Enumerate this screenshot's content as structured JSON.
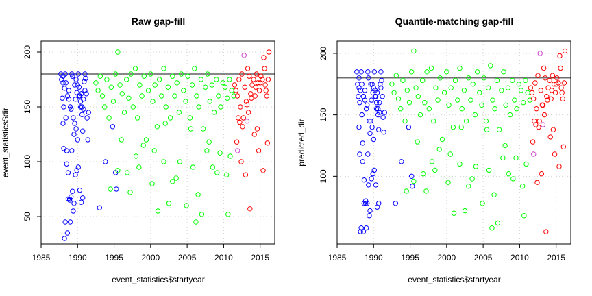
{
  "colors": {
    "period_1": "#0000ff",
    "period_2": "#00ff00",
    "period_3": "#ff0000",
    "highlight": "#cc44cc",
    "threshold_line": "#404040",
    "grid": "#d3d3d3"
  },
  "chart_data": [
    {
      "type": "scatter",
      "title": "Raw gap-fill",
      "xlabel": "event_statistics$startyear",
      "ylabel": "event_statistics$dir",
      "xlim": [
        1985,
        2017
      ],
      "ylim": [
        25,
        210
      ],
      "xticks": [
        "1985",
        "1990",
        "1995",
        "2000",
        "2005",
        "2010",
        "2015"
      ],
      "yticks": [
        "50",
        "100",
        "150",
        "200"
      ],
      "xtick_values": [
        1985,
        1990,
        1995,
        2000,
        2005,
        2010,
        2015
      ],
      "ytick_values": [
        50,
        100,
        150,
        200
      ],
      "grid": true,
      "hline": 180,
      "series": [
        {
          "color_key": "period_1",
          "x": [
            1987.7,
            1987.8,
            1987.9,
            1988.0,
            1988.0,
            1988.1,
            1988.2,
            1988.3,
            1988.4,
            1988.5,
            1988.6,
            1988.7,
            1988.8,
            1988.9,
            1989.0,
            1989.1,
            1989.2,
            1989.3,
            1989.4,
            1989.5,
            1989.6,
            1989.7,
            1989.8,
            1989.9,
            1990.0,
            1990.1,
            1990.2,
            1990.3,
            1990.4,
            1990.5,
            1990.6,
            1990.7,
            1990.8,
            1990.9,
            1991.0,
            1991.1,
            1991.2,
            1991.3,
            1991.4,
            1991.5,
            1988.1,
            1988.3,
            1988.5,
            1988.7,
            1988.9,
            1989.1,
            1989.3,
            1989.5,
            1989.7,
            1989.9,
            1990.1,
            1990.3,
            1990.5,
            1990.7,
            1988.2,
            1988.6,
            1989.0,
            1989.4,
            1989.8,
            1990.2,
            1990.6,
            1991.0,
            1988.0,
            1988.4,
            1988.8,
            1989.2,
            1989.6,
            1990.0,
            1990.4,
            1990.8,
            1993.0,
            1993.8,
            1994.8,
            1995.3,
            1995.2
          ],
          "y": [
            180,
            175,
            158,
            172,
            135,
            150,
            167,
            180,
            140,
            110,
            160,
            90,
            157,
            66,
            150,
            148,
            180,
            178,
            140,
            125,
            170,
            157,
            175,
            163,
            170,
            180,
            168,
            160,
            150,
            162,
            143,
            128,
            157,
            173,
            180,
            176,
            162,
            140,
            120,
            145,
            112,
            45,
            98,
            66,
            65,
            68,
            73,
            62,
            88,
            92,
            95,
            74,
            63,
            67,
            30,
            35,
            45,
            55,
            130,
            160,
            150,
            165,
            178,
            172,
            165,
            110,
            135,
            120,
            155,
            148,
            58,
            100,
            132,
            75,
            90
          ]
        },
        {
          "color_key": "period_2",
          "x": [
            1992.5,
            1992.8,
            1993.1,
            1993.4,
            1993.7,
            1994.0,
            1994.3,
            1994.6,
            1994.9,
            1995.2,
            1995.5,
            1995.8,
            1996.1,
            1996.4,
            1996.7,
            1997.0,
            1997.3,
            1997.6,
            1997.9,
            1998.2,
            1998.5,
            1998.8,
            1999.1,
            1999.4,
            1999.7,
            2000.0,
            2000.3,
            2000.6,
            2000.9,
            2001.2,
            2001.5,
            2001.8,
            2002.1,
            2002.4,
            2002.7,
            2003.0,
            2003.3,
            2003.6,
            2003.9,
            2004.2,
            2004.5,
            2004.8,
            2005.1,
            2005.4,
            2005.7,
            2006.0,
            2006.3,
            2006.6,
            2006.9,
            2007.2,
            2007.5,
            2007.8,
            2008.1,
            2008.4,
            2008.7,
            2009.0,
            2009.3,
            2009.6,
            2009.9,
            2010.2,
            2010.5,
            2010.8,
            2011.1,
            2011.4,
            1995.5,
            1997.2,
            1998.4,
            2000.2,
            2001.8,
            2003.5,
            2004.9,
            2006.2,
            2007.7,
            2009.1,
            2010.6,
            1996.0,
            1998.0,
            2000.5,
            2002.5,
            2004.0,
            2006.5,
            2008.5,
            2010.4,
            1994.5,
            1999.0,
            2001.0,
            2003.0,
            2005.5,
            2007.0,
            2009.5,
            1996.8,
            2002.0,
            2005.8,
            2008.0,
            2010.9
          ],
          "y": [
            172,
            165,
            178,
            160,
            150,
            175,
            140,
            168,
            155,
            180,
            200,
            170,
            162,
            145,
            175,
            158,
            180,
            150,
            185,
            140,
            170,
            160,
            178,
            120,
            165,
            180,
            155,
            170,
            132,
            175,
            160,
            185,
            150,
            168,
            140,
            178,
            160,
            172,
            145,
            180,
            165,
            155,
            178,
            140,
            170,
            185,
            160,
            150,
            175,
            130,
            168,
            180,
            155,
            170,
            145,
            175,
            160,
            150,
            172,
            168,
            158,
            175,
            165,
            160,
            92,
            72,
            95,
            80,
            100,
            85,
            60,
            45,
            110,
            90,
            52,
            120,
            105,
            110,
            62,
            100,
            70,
            95,
            88,
            75,
            115,
            55,
            82,
            130,
            52,
            108,
            90,
            135,
            95,
            118,
            105
          ]
        },
        {
          "color_key": "period_3",
          "x": [
            2011.5,
            2011.7,
            2011.9,
            2012.1,
            2012.3,
            2012.5,
            2012.7,
            2012.9,
            2013.1,
            2013.3,
            2013.5,
            2013.7,
            2013.9,
            2014.1,
            2014.3,
            2014.5,
            2014.7,
            2014.9,
            2015.1,
            2015.3,
            2015.5,
            2015.7,
            2015.9,
            2016.1,
            2011.8,
            2012.4,
            2013.0,
            2013.6,
            2014.2,
            2014.8,
            2015.4,
            2016.0,
            2012.0,
            2012.6,
            2013.2,
            2013.8,
            2014.4,
            2015.0,
            2015.6,
            2016.2,
            2012.2,
            2013.4,
            2014.6,
            2015.8
          ],
          "y": [
            170,
            165,
            160,
            175,
            150,
            180,
            140,
            168,
            155,
            185,
            178,
            162,
            170,
            175,
            160,
            180,
            172,
            165,
            178,
            175,
            195,
            170,
            160,
            175,
            118,
            100,
            88,
            57,
            125,
            110,
            92,
            117,
            140,
            132,
            152,
            158,
            168,
            172,
            185,
            200,
            136,
            145,
            130,
            165
          ]
        },
        {
          "color_key": "highlight",
          "x": [
            2012.8,
            2013.2,
            2011.9
          ],
          "y": [
            197,
            137,
            110
          ]
        }
      ]
    },
    {
      "type": "scatter",
      "title": "Quantile-matching gap-fill",
      "xlabel": "event_statistics$startyear",
      "ylabel": "predicted_dir",
      "xlim": [
        1985,
        2017
      ],
      "ylim": [
        45,
        210
      ],
      "xticks": [
        "1985",
        "1990",
        "1995",
        "2000",
        "2005",
        "2010",
        "2015"
      ],
      "yticks": [
        "100",
        "150",
        "200"
      ],
      "xtick_values": [
        1985,
        1990,
        1995,
        2000,
        2005,
        2010,
        2015
      ],
      "ytick_values": [
        100,
        150,
        200
      ],
      "grid": true,
      "hline": 180,
      "series": [
        {
          "color_key": "period_1",
          "x": [
            1987.7,
            1987.8,
            1987.9,
            1988.0,
            1988.0,
            1988.1,
            1988.2,
            1988.3,
            1988.4,
            1988.5,
            1988.6,
            1988.7,
            1988.8,
            1988.9,
            1989.0,
            1989.1,
            1989.2,
            1989.3,
            1989.4,
            1989.5,
            1989.6,
            1989.7,
            1989.8,
            1989.9,
            1990.0,
            1990.1,
            1990.2,
            1990.3,
            1990.4,
            1990.5,
            1990.6,
            1990.7,
            1990.8,
            1990.9,
            1991.0,
            1991.1,
            1991.2,
            1991.3,
            1991.4,
            1991.5,
            1988.1,
            1988.3,
            1988.5,
            1988.7,
            1988.9,
            1989.1,
            1989.3,
            1989.5,
            1989.7,
            1989.9,
            1990.1,
            1990.3,
            1990.5,
            1990.7,
            1988.2,
            1988.6,
            1989.0,
            1989.4,
            1989.8,
            1990.2,
            1990.6,
            1991.0,
            1988.0,
            1988.4,
            1988.8,
            1989.2,
            1989.6,
            1990.0,
            1990.4,
            1990.8,
            1993.0,
            1993.8,
            1994.8,
            1995.3,
            1995.2
          ],
          "y": [
            185,
            175,
            165,
            172,
            140,
            160,
            170,
            185,
            150,
            127,
            165,
            97,
            162,
            78,
            155,
            158,
            185,
            180,
            145,
            135,
            175,
            162,
            175,
            168,
            172,
            185,
            170,
            165,
            155,
            168,
            150,
            138,
            160,
            175,
            185,
            178,
            165,
            148,
            136,
            152,
            118,
            58,
            112,
            78,
            80,
            78,
            93,
            72,
            98,
            102,
            105,
            93,
            75,
            78,
            55,
            55,
            58,
            68,
            140,
            165,
            155,
            172,
            180,
            175,
            170,
            118,
            145,
            130,
            160,
            152,
            78,
            112,
            140,
            92,
            100
          ]
        },
        {
          "color_key": "period_2",
          "x": [
            1992.5,
            1992.8,
            1993.1,
            1993.4,
            1993.7,
            1994.0,
            1994.3,
            1994.6,
            1994.9,
            1995.2,
            1995.5,
            1995.8,
            1996.1,
            1996.4,
            1996.7,
            1997.0,
            1997.3,
            1997.6,
            1997.9,
            1998.2,
            1998.5,
            1998.8,
            1999.1,
            1999.4,
            1999.7,
            2000.0,
            2000.3,
            2000.6,
            2000.9,
            2001.2,
            2001.5,
            2001.8,
            2002.1,
            2002.4,
            2002.7,
            2003.0,
            2003.3,
            2003.6,
            2003.9,
            2004.2,
            2004.5,
            2004.8,
            2005.1,
            2005.4,
            2005.7,
            2006.0,
            2006.3,
            2006.6,
            2006.9,
            2007.2,
            2007.5,
            2007.8,
            2008.1,
            2008.4,
            2008.7,
            2009.0,
            2009.3,
            2009.6,
            2009.9,
            2010.2,
            2010.5,
            2010.8,
            2011.1,
            2011.4,
            1995.5,
            1997.2,
            1998.4,
            2000.2,
            2001.8,
            2003.5,
            2004.9,
            2006.2,
            2007.7,
            2009.1,
            2010.6,
            1996.0,
            1998.0,
            2000.5,
            2002.5,
            2004.0,
            2006.5,
            2008.5,
            2010.4,
            1994.5,
            1999.0,
            2001.0,
            2003.0,
            2005.5,
            2007.0,
            2009.5,
            1996.8,
            2002.0,
            2005.8,
            2008.0,
            2010.9
          ],
          "y": [
            175,
            168,
            182,
            163,
            155,
            178,
            145,
            170,
            160,
            185,
            202,
            172,
            165,
            150,
            178,
            160,
            185,
            155,
            188,
            145,
            172,
            162,
            180,
            130,
            168,
            185,
            158,
            172,
            140,
            178,
            162,
            188,
            155,
            170,
            145,
            180,
            162,
            175,
            150,
            185,
            168,
            158,
            180,
            145,
            172,
            190,
            162,
            155,
            178,
            138,
            170,
            185,
            158,
            172,
            150,
            178,
            162,
            155,
            175,
            170,
            160,
            178,
            168,
            162,
            96,
            88,
            105,
            95,
            110,
            98,
            78,
            58,
            115,
            98,
            68,
            128,
            112,
            118,
            72,
            108,
            85,
            102,
            92,
            88,
            122,
            70,
            92,
            138,
            62,
            115,
            102,
            140,
            105,
            125,
            110
          ]
        },
        {
          "color_key": "period_3",
          "x": [
            2011.5,
            2011.7,
            2011.9,
            2012.1,
            2012.3,
            2012.5,
            2012.7,
            2012.9,
            2013.1,
            2013.3,
            2013.5,
            2013.7,
            2013.9,
            2014.1,
            2014.3,
            2014.5,
            2014.7,
            2014.9,
            2015.1,
            2015.3,
            2015.5,
            2015.7,
            2015.9,
            2016.1,
            2011.8,
            2012.4,
            2013.0,
            2013.6,
            2014.2,
            2014.8,
            2015.4,
            2016.0,
            2012.0,
            2012.6,
            2013.2,
            2013.8,
            2014.4,
            2015.0,
            2015.6,
            2016.2,
            2012.2,
            2013.4,
            2014.6,
            2015.8
          ],
          "y": [
            172,
            168,
            163,
            176,
            155,
            182,
            145,
            170,
            158,
            188,
            180,
            165,
            172,
            178,
            163,
            182,
            175,
            168,
            180,
            176,
            198,
            172,
            163,
            176,
            128,
            95,
            102,
            55,
            132,
            118,
            108,
            124,
            145,
            140,
            158,
            162,
            170,
            175,
            188,
            202,
            142,
            150,
            138,
            168
          ]
        },
        {
          "color_key": "highlight",
          "x": [
            2012.8,
            2013.2,
            2011.9
          ],
          "y": [
            200,
            142,
            118
          ]
        }
      ]
    }
  ]
}
